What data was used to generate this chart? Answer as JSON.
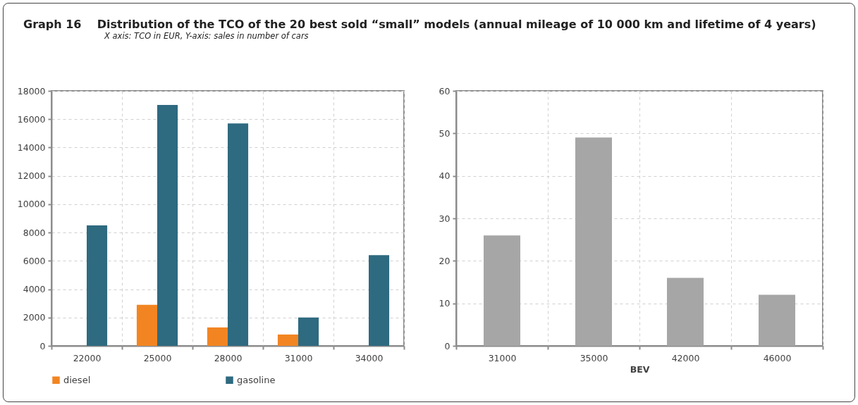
{
  "chart_data": [
    {
      "type": "bar",
      "title": "Graph 16    Distribution of the TCO of the 20 best sold “small” models (annual mileage of 10 000 km and lifetime of 4 years)",
      "subtitle": "X axis: TCO in EUR, Y-axis: sales in number of cars",
      "categories": [
        "22000",
        "25000",
        "28000",
        "31000",
        "34000"
      ],
      "series": [
        {
          "name": "diesel",
          "color": "#f28522",
          "values": [
            null,
            2900,
            1300,
            800,
            null
          ]
        },
        {
          "name": "gasoline",
          "color": "#2e6a80",
          "values": [
            8500,
            17000,
            15700,
            2000,
            6400
          ]
        }
      ],
      "ylim": [
        0,
        18000
      ],
      "yticks": [
        0,
        2000,
        4000,
        6000,
        8000,
        10000,
        12000,
        14000,
        16000,
        18000
      ],
      "grid": true,
      "legend": "bottom"
    },
    {
      "type": "bar",
      "xlabel": "BEV",
      "categories": [
        "31000",
        "35000",
        "42000",
        "46000"
      ],
      "series": [
        {
          "color": "#a6a6a6",
          "values": [
            26,
            49,
            16,
            12
          ]
        }
      ],
      "ylim": [
        0,
        60
      ],
      "yticks": [
        0,
        10,
        20,
        30,
        40,
        50,
        60
      ],
      "grid": true
    }
  ]
}
